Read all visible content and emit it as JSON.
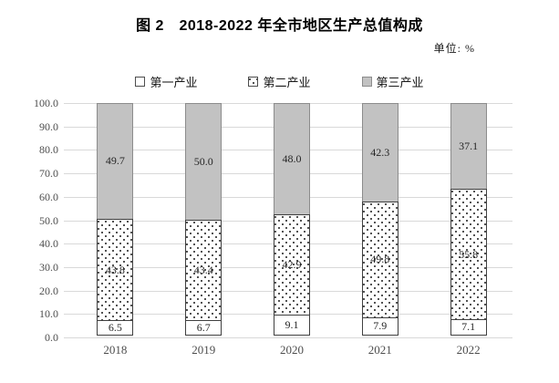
{
  "title": "图 2　2018-2022 年全市地区生产总值构成",
  "unit_label": "单位: %",
  "legend": [
    {
      "label": "第一产业",
      "swatch": "white-square-icon"
    },
    {
      "label": "第二产业",
      "swatch": "dotted-square-icon"
    },
    {
      "label": "第三产业",
      "swatch": "gray-square-icon"
    }
  ],
  "chart_data": {
    "type": "bar",
    "stacked": true,
    "title": "图 2　2018-2022 年全市地区生产总值构成",
    "unit": "%",
    "categories": [
      "2018",
      "2019",
      "2020",
      "2021",
      "2022"
    ],
    "series": [
      {
        "name": "第一产业",
        "style": "white",
        "values": [
          6.5,
          6.7,
          9.1,
          7.9,
          7.1
        ]
      },
      {
        "name": "第二产业",
        "style": "dotted",
        "values": [
          43.8,
          43.4,
          42.9,
          49.8,
          55.8
        ]
      },
      {
        "name": "第三产业",
        "style": "gray",
        "values": [
          49.7,
          50.0,
          48.0,
          42.3,
          37.1
        ]
      }
    ],
    "ylim": [
      0,
      100
    ],
    "ytick_step": 10,
    "yticks": [
      "100.0",
      "90.0",
      "80.0",
      "70.0",
      "60.0",
      "50.0",
      "40.0",
      "30.0",
      "20.0",
      "10.0",
      "0.0"
    ],
    "grid": true,
    "legend_position": "top"
  },
  "colors": {
    "tertiary_fill": "#c2c2c2",
    "gridline": "#d9d9d9",
    "segment_border_dark": "#404040",
    "segment_border_gray": "#8c8c8c",
    "axis_text": "#4d4d4d",
    "title_text": "#000000"
  }
}
